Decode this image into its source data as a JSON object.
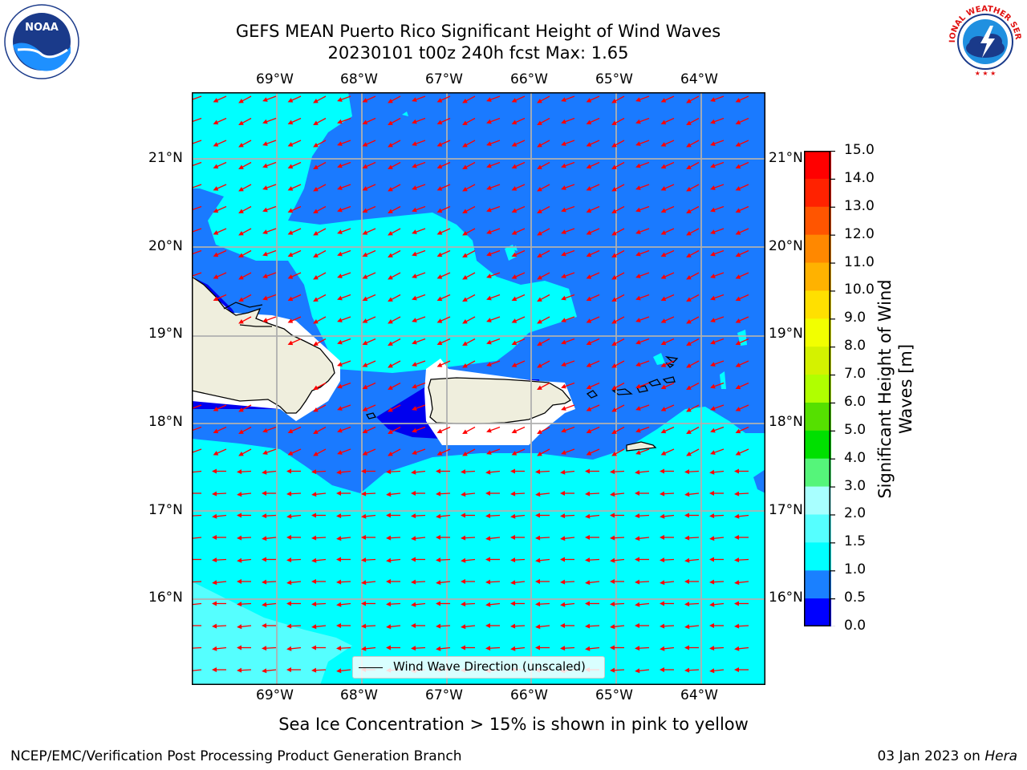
{
  "title": {
    "line1": "GEFS MEAN Puerto Rico Significant Height of Wind Waves",
    "line2": "20230101 t00z 240h fcst   Max: 1.65"
  },
  "axes": {
    "lon_labels": [
      "69°W",
      "68°W",
      "67°W",
      "66°W",
      "65°W",
      "64°W"
    ],
    "lat_labels": [
      "21°N",
      "20°N",
      "19°N",
      "18°N",
      "17°N",
      "16°N"
    ]
  },
  "colorbar": {
    "label_line1": "Significant Height of Wind",
    "label_line2": "Waves [m]",
    "ticks": [
      "15.0",
      "14.0",
      "13.0",
      "12.0",
      "11.0",
      "10.0",
      "9.0",
      "8.0",
      "7.0",
      "6.0",
      "5.0",
      "4.0",
      "3.0",
      "2.0",
      "1.5",
      "1.0",
      "0.5",
      "0.0"
    ],
    "colors": [
      "#ff0000",
      "#ff2200",
      "#ff5500",
      "#ff8800",
      "#ffb200",
      "#ffe000",
      "#f2ff00",
      "#d4f200",
      "#b0ff00",
      "#55e000",
      "#00e000",
      "#55f57a",
      "#a8ffff",
      "#55ffff",
      "#00ffff",
      "#1a80ff",
      "#0000ff"
    ]
  },
  "legend": {
    "label": "Wind Wave Direction (unscaled)"
  },
  "ice_note": "Sea Ice Concentration > 15% is shown in pink to yellow",
  "footer": {
    "left": "NCEP/EMC/Verification Post Processing Product Generation Branch",
    "right_date": "03 Jan 2023 on ",
    "right_host": "Hera"
  },
  "logos": {
    "noaa": "NOAA",
    "nws": "NATIONAL WEATHER SERVICE"
  },
  "palette": {
    "deep_blue": "#0000ee",
    "mid_blue": "#1a7aff",
    "cyan": "#00ffff",
    "light_cyan": "#55ffff",
    "land": "#efeedd",
    "arrow": "#ff0000"
  }
}
